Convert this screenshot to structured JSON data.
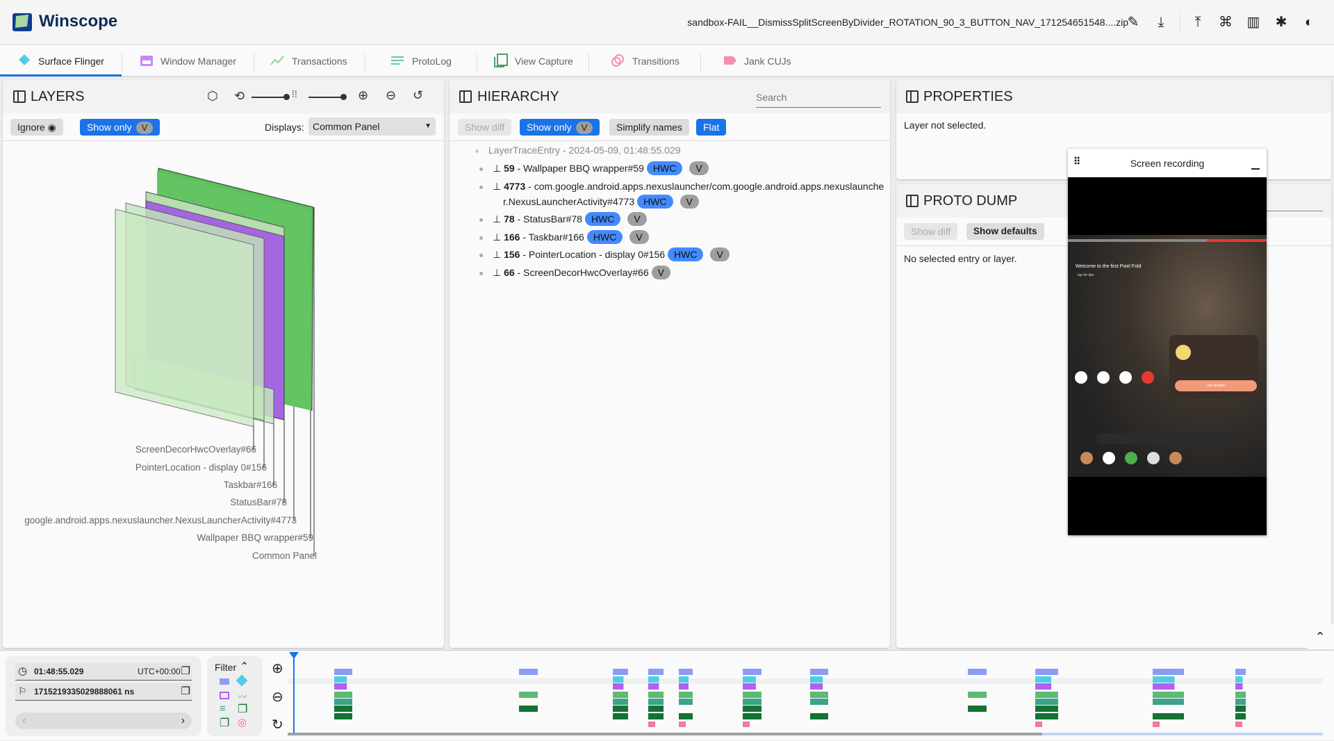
{
  "app": {
    "title": "Winscope",
    "filename": "sandbox-FAIL__DismissSplitScreenByDivider_ROTATION_90_3_BUTTON_NAV_171254651548....zip",
    "header_icons": [
      "edit-icon",
      "download-icon",
      "upload-icon",
      "shortcut-icon",
      "docs-icon",
      "bug-icon",
      "theme-icon"
    ]
  },
  "tabs": [
    {
      "label": "Surface Flinger",
      "active": true
    },
    {
      "label": "Window Manager"
    },
    {
      "label": "Transactions"
    },
    {
      "label": "ProtoLog"
    },
    {
      "label": "View Capture"
    },
    {
      "label": "Transitions"
    },
    {
      "label": "Jank CUJs"
    }
  ],
  "layers": {
    "title": "LAYERS",
    "ignore": "Ignore",
    "show_only": "Show only",
    "v": "V",
    "displays_label": "Displays:",
    "display_value": "Common Panel",
    "labels": [
      "ScreenDecorHwcOverlay#66",
      "PointerLocation - display 0#156",
      "Taskbar#166",
      "StatusBar#78",
      "google.android.apps.nexuslauncher.NexusLauncherActivity#4773",
      "Wallpaper BBQ wrapper#59",
      "Common Panel"
    ]
  },
  "hierarchy": {
    "title": "HIERARCHY",
    "search_placeholder": "Search",
    "show_diff": "Show diff",
    "show_only": "Show only",
    "v": "V",
    "simplify": "Simplify names",
    "flat": "Flat",
    "root": "LayerTraceEntry - 2024-05-09, 01:48:55.029",
    "items": [
      {
        "id": "59",
        "name": " - Wallpaper BBQ wrapper#59",
        "hwc": "HWC",
        "v": "V"
      },
      {
        "id": "4773",
        "name": " - com.google.android.apps.nexuslauncher/com.google.android.apps.nexuslaunche",
        "name2": "r.NexusLauncherActivity#4773",
        "hwc": "HWC",
        "v": "V"
      },
      {
        "id": "78",
        "name": " - StatusBar#78",
        "hwc": "HWC",
        "v": "V"
      },
      {
        "id": "166",
        "name": " - Taskbar#166",
        "hwc": "HWC",
        "v": "V"
      },
      {
        "id": "156",
        "name": " - PointerLocation - display 0#156",
        "hwc": "HWC",
        "v": "V"
      },
      {
        "id": "66",
        "name": " - ScreenDecorHwcOverlay#66",
        "v": "V"
      }
    ]
  },
  "properties": {
    "title": "PROPERTIES",
    "empty": "Layer not selected."
  },
  "proto_dump": {
    "title": "PROTO DUMP",
    "show_diff": "Show diff",
    "show_defaults": "Show defaults",
    "empty": "No selected entry or layer."
  },
  "screen_recording": {
    "title": "Screen recording",
    "welcome": "Welcome to the first Pixel Fold",
    "tips": "tap for tips",
    "location": "Use location"
  },
  "timeline": {
    "time": "01:48:55.029",
    "timezone": "UTC+00:00",
    "ns": "1715219335029888061 ns",
    "filter": "Filter",
    "colors": {
      "wm": "#8c9cf5",
      "sf": "#4fcde4",
      "vc": "#b25ff2",
      "tx": "#5cba72",
      "pl": "#3da38a",
      "d1": "#137333",
      "d2": "#137333",
      "tr": "#f07aa0"
    }
  }
}
